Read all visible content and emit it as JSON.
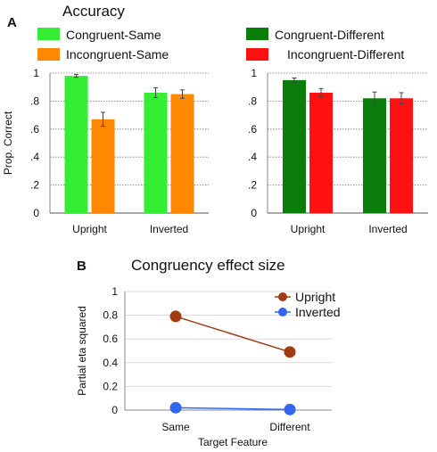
{
  "panel_a": {
    "letter": "A",
    "title": "Accuracy",
    "legend": [
      {
        "label": "Congruent-Same",
        "color": "#33ee33"
      },
      {
        "label": "Incongruent-Same",
        "color": "#ff8800"
      },
      {
        "label": "Congruent-Different",
        "color": "#0a7d0a"
      },
      {
        "label": "Incongruent-Different",
        "color": "#ff1111"
      }
    ]
  },
  "panel_b": {
    "letter": "B",
    "title": "Congruency effect size"
  },
  "chart_data": [
    {
      "type": "bar",
      "title": "Accuracy",
      "ylabel": "Prop. Correct",
      "ylim": [
        0,
        1
      ],
      "yticks": [
        "0",
        ".2",
        ".4",
        ".6",
        ".8",
        "1"
      ],
      "categories": [
        "Upright",
        "Inverted"
      ],
      "grid": true,
      "series": [
        {
          "name": "Congruent-Same",
          "color": "#33ee33",
          "values": [
            0.98,
            0.86
          ],
          "errors": [
            0.01,
            0.035
          ]
        },
        {
          "name": "Incongruent-Same",
          "color": "#ff8800",
          "values": [
            0.67,
            0.85
          ],
          "errors": [
            0.05,
            0.03
          ]
        }
      ]
    },
    {
      "type": "bar",
      "ylim": [
        0,
        1
      ],
      "yticks": [
        "0",
        ".2",
        ".4",
        ".6",
        ".8",
        "1"
      ],
      "categories": [
        "Upright",
        "Inverted"
      ],
      "grid": true,
      "series": [
        {
          "name": "Congruent-Different",
          "color": "#0a7d0a",
          "values": [
            0.95,
            0.82
          ],
          "errors": [
            0.015,
            0.045
          ]
        },
        {
          "name": "Incongruent-Different",
          "color": "#ff1111",
          "values": [
            0.86,
            0.82
          ],
          "errors": [
            0.03,
            0.04
          ]
        }
      ]
    },
    {
      "type": "line",
      "title": "Congruency effect size",
      "xlabel": "Target Feature",
      "ylabel": "Partial eta squared",
      "categories": [
        "Same",
        "Different"
      ],
      "ylim": [
        0,
        1
      ],
      "yticks": [
        "0",
        "0.2",
        "0.4",
        "0.6",
        "0.8",
        "1"
      ],
      "legend_position": "top-right",
      "series": [
        {
          "name": "Upright",
          "color": "#a33a12",
          "values": [
            0.79,
            0.49
          ]
        },
        {
          "name": "Inverted",
          "color": "#3366ee",
          "values": [
            0.02,
            0.005
          ]
        }
      ]
    }
  ]
}
